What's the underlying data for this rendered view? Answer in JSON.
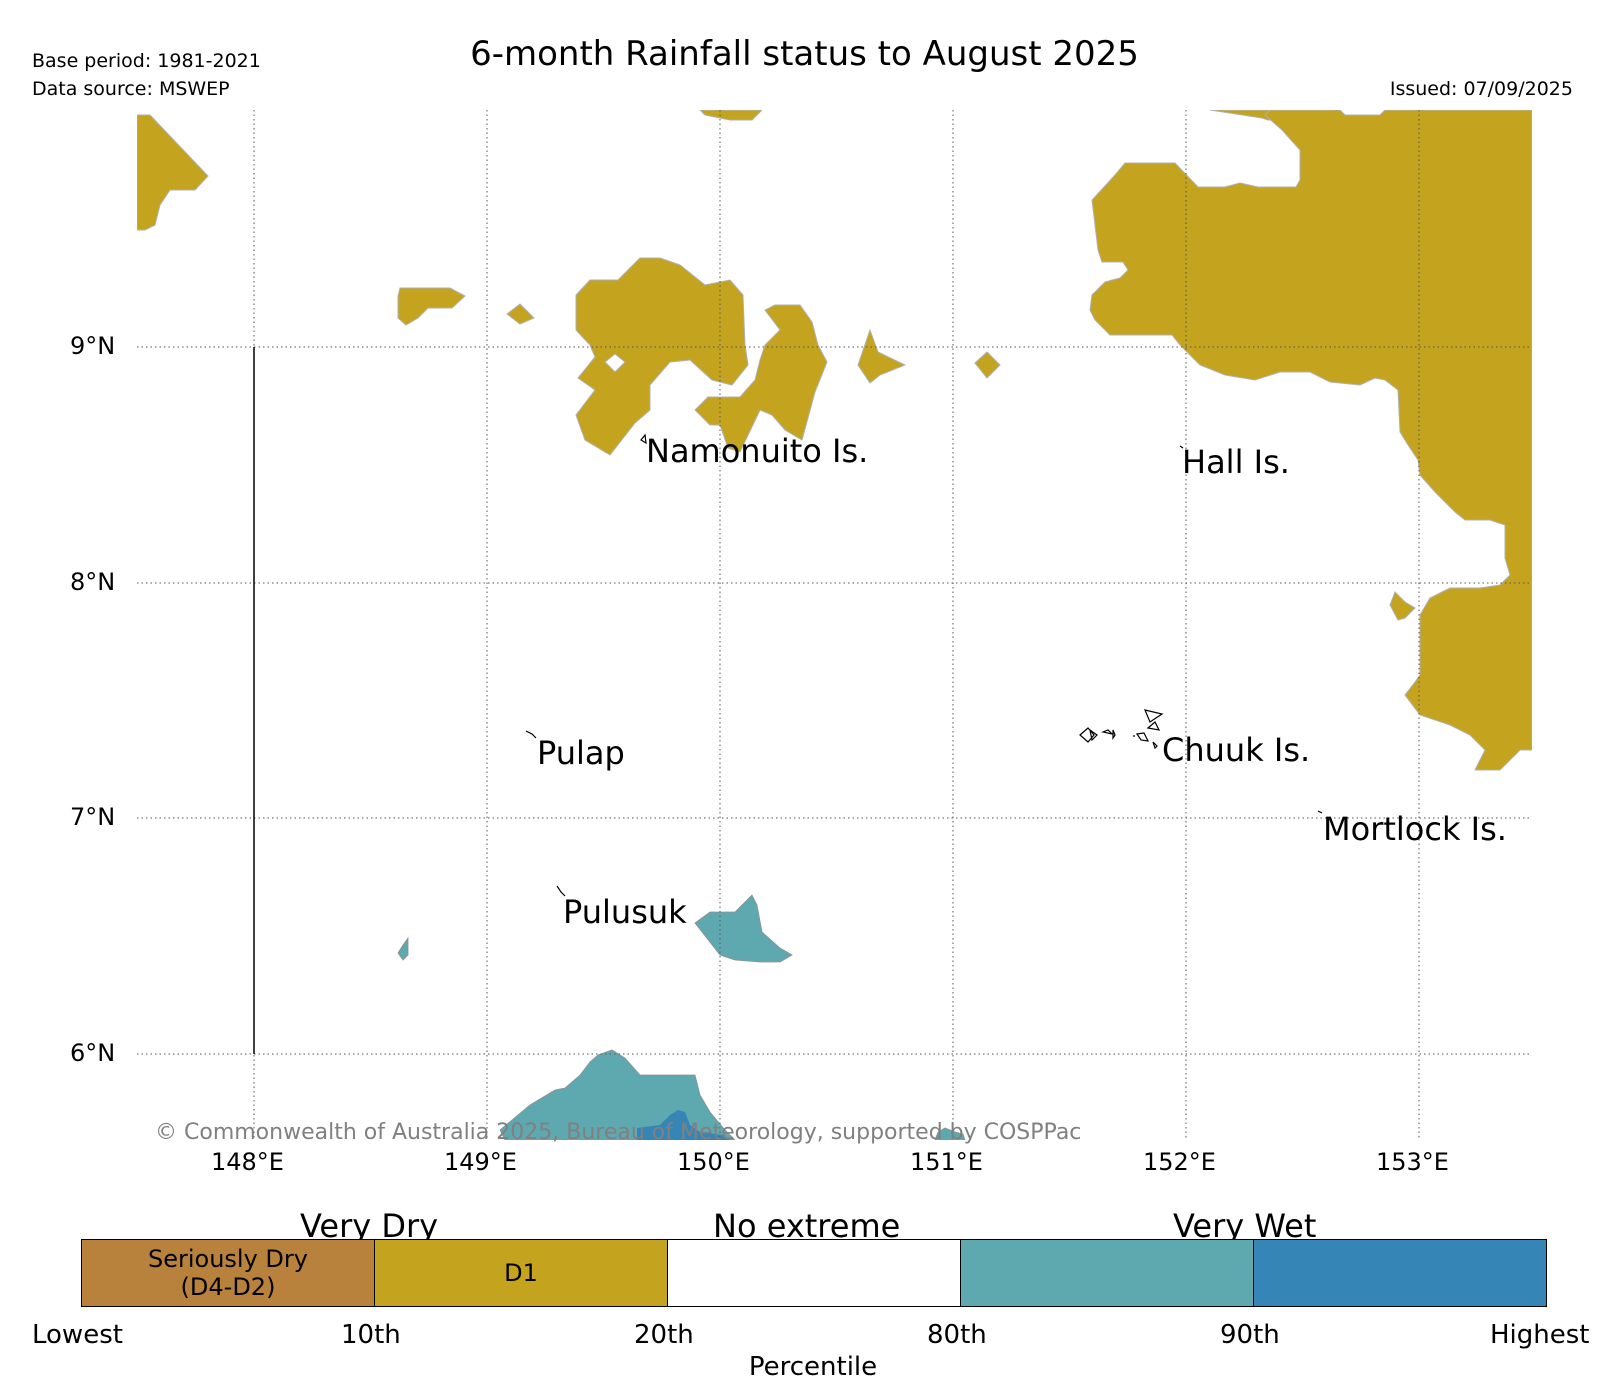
{
  "title": "6-month Rainfall status to August 2025",
  "base_period": "Base period: 1981-2021",
  "data_source": "Data source: MSWEP",
  "issued": "Issued: 07/09/2025",
  "copyright": "© Commonwealth of Australia 2025, Bureau of Meteorology, supported by COSPPac",
  "latitude_labels": [
    "9°N",
    "8°N",
    "7°N",
    "6°N"
  ],
  "longitude_labels": [
    "148°E",
    "149°E",
    "150°E",
    "151°E",
    "152°E",
    "153°E"
  ],
  "place_labels": {
    "namonuito": "Namonuito Is.",
    "hall": "Hall Is.",
    "pulap": "Pulap",
    "chuuk": "Chuuk Is.",
    "mortlock": "Mortlock Is.",
    "pulusuk": "Pulusuk"
  },
  "legend": {
    "groups": [
      "Very Dry",
      "No extreme",
      "Very Wet"
    ],
    "categories": [
      {
        "label": "Seriously Dry (D4-D2)",
        "color": "#b8823d"
      },
      {
        "label": "D1",
        "color": "#c4a41f"
      },
      {
        "label": "",
        "color": "#ffffff"
      },
      {
        "label": "",
        "color": "#5ea9b0"
      },
      {
        "label": "",
        "color": "#3585b7"
      }
    ],
    "percentiles": [
      "Lowest",
      "10th",
      "20th",
      "80th",
      "90th",
      "Highest"
    ],
    "axis_title": "Percentile"
  },
  "colors": {
    "dry": "#c4a41f",
    "wet": "#5ea9b0",
    "very_wet": "#3585b7"
  }
}
